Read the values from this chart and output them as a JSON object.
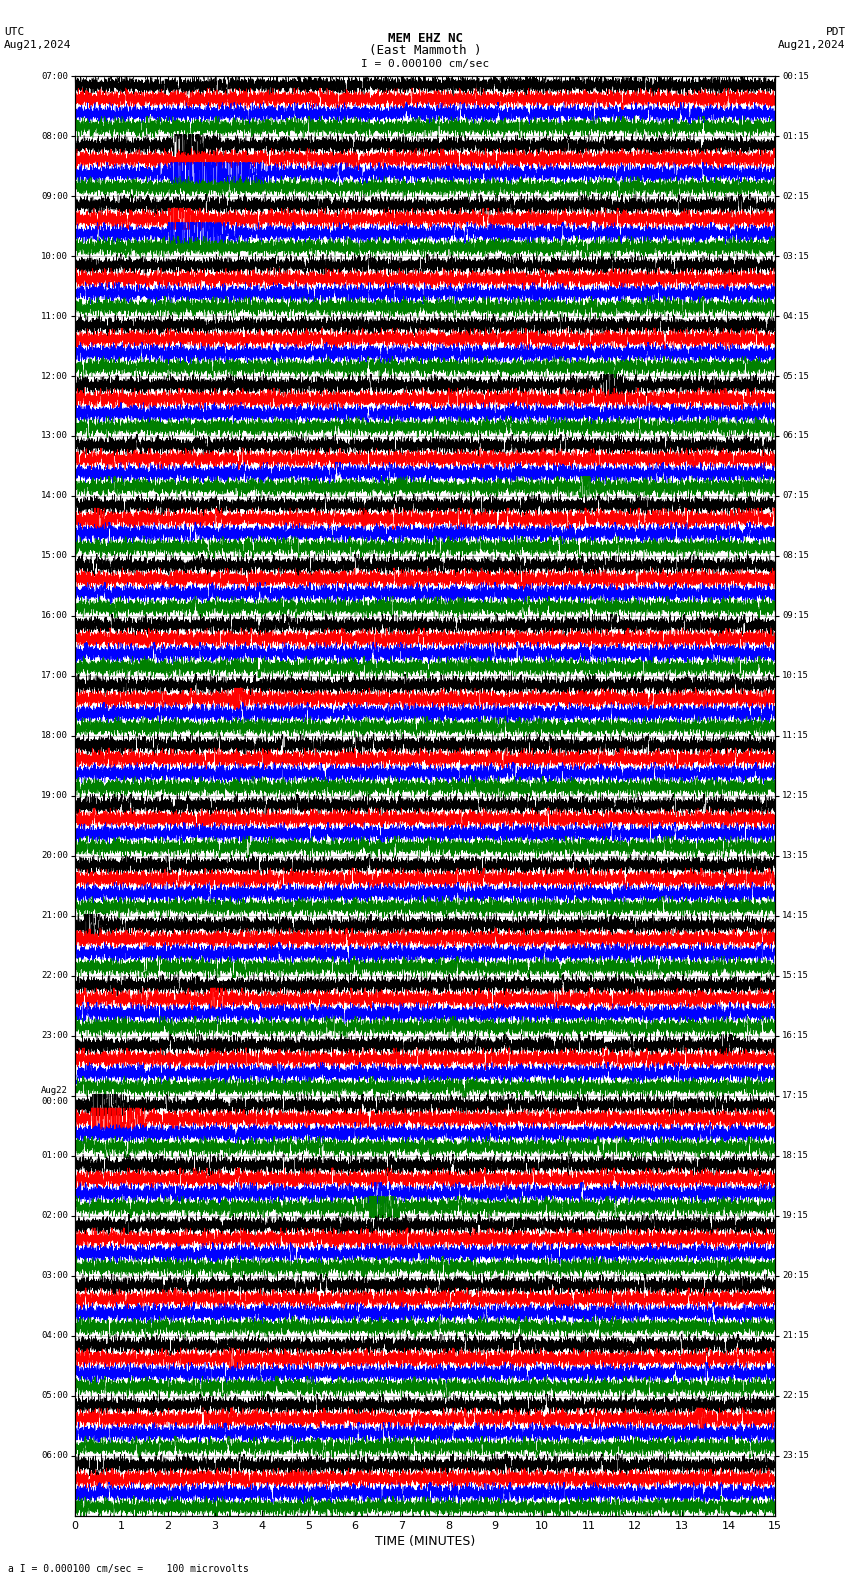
{
  "title_line1": "MEM EHZ NC",
  "title_line2": "(East Mammoth )",
  "scale_label": "I = 0.000100 cm/sec",
  "utc_label": "UTC",
  "pdt_label": "PDT",
  "date_left": "Aug21,2024",
  "date_right": "Aug21,2024",
  "bottom_label": "a I = 0.000100 cm/sec =    100 microvolts",
  "xlabel": "TIME (MINUTES)",
  "left_times": [
    "07:00",
    "08:00",
    "09:00",
    "10:00",
    "11:00",
    "12:00",
    "13:00",
    "14:00",
    "15:00",
    "16:00",
    "17:00",
    "18:00",
    "19:00",
    "20:00",
    "21:00",
    "22:00",
    "23:00",
    "Aug22\n00:00",
    "01:00",
    "02:00",
    "03:00",
    "04:00",
    "05:00",
    "06:00"
  ],
  "right_times": [
    "00:15",
    "01:15",
    "02:15",
    "03:15",
    "04:15",
    "05:15",
    "06:15",
    "07:15",
    "08:15",
    "09:15",
    "10:15",
    "11:15",
    "12:15",
    "13:15",
    "14:15",
    "15:15",
    "16:15",
    "17:15",
    "18:15",
    "19:15",
    "20:15",
    "21:15",
    "22:15",
    "23:15"
  ],
  "n_rows": 24,
  "n_traces_per_row": 4,
  "trace_colors": [
    "black",
    "red",
    "blue",
    "green"
  ],
  "bg_color": "white",
  "minutes": 15,
  "seed": 42
}
